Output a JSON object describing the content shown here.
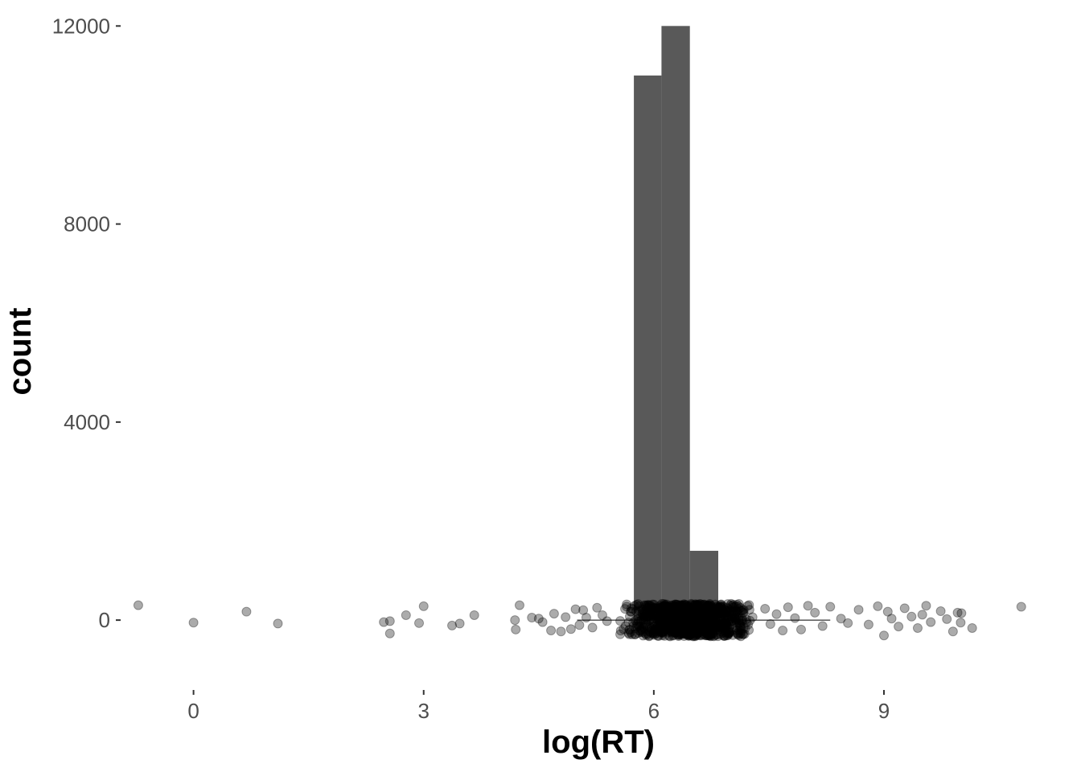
{
  "chart_data": {
    "type": "bar",
    "title": "",
    "xlabel": "log(RT)",
    "ylabel": "count",
    "xlim": [
      -0.95,
      10.95
    ],
    "ylim": [
      -1200,
      12200
    ],
    "x_ticks": [
      0,
      3,
      6,
      9
    ],
    "y_ticks": [
      0,
      4000,
      8000,
      12000
    ],
    "x_tick_labels": [
      "0",
      "3",
      "6",
      "9"
    ],
    "y_tick_labels": [
      "0",
      "4000",
      "8000",
      "12000"
    ],
    "grid": false,
    "legend": "none",
    "bar_color": "#595959",
    "bins": [
      {
        "x0": 5.74,
        "x1": 6.1,
        "count": 11000
      },
      {
        "x0": 6.1,
        "x1": 6.47,
        "count": 12000
      },
      {
        "x0": 6.47,
        "x1": 6.84,
        "count": 1400
      }
    ],
    "boxplot": {
      "min": 5.0,
      "q1": 5.95,
      "median": 6.15,
      "q3": 6.35,
      "max": 8.3
    },
    "jitter_points": {
      "color": "#000000",
      "opacity": 0.33,
      "x": [
        -0.72,
        0.0,
        0.69,
        1.1,
        2.48,
        2.56,
        2.56,
        2.77,
        2.94,
        3.0,
        3.37,
        3.47,
        3.66,
        4.19,
        4.2,
        4.25,
        4.41,
        4.5,
        4.55,
        4.66,
        4.7,
        4.79,
        4.85,
        4.92,
        4.98,
        5.03,
        5.08,
        5.12,
        5.2,
        5.26,
        5.33,
        5.39,
        7.45,
        7.52,
        7.6,
        7.68,
        7.75,
        7.84,
        7.92,
        8.01,
        8.1,
        8.2,
        8.3,
        8.44,
        8.53,
        8.67,
        8.8,
        8.92,
        9.0,
        9.05,
        9.1,
        9.19,
        9.27,
        9.36,
        9.44,
        9.5,
        9.55,
        9.61,
        9.74,
        9.82,
        9.9,
        9.96,
        10.0,
        10.01,
        10.15,
        10.79
      ],
      "y": [
        300,
        -50,
        170,
        -70,
        -40,
        -20,
        -270,
        100,
        -60,
        280,
        -110,
        -70,
        100,
        0,
        -190,
        300,
        50,
        30,
        -40,
        -210,
        130,
        -230,
        60,
        -180,
        220,
        -100,
        200,
        50,
        -150,
        250,
        100,
        -20,
        230,
        -80,
        120,
        -210,
        260,
        40,
        -190,
        290,
        150,
        -120,
        270,
        30,
        -60,
        210,
        -90,
        280,
        -310,
        170,
        30,
        -130,
        240,
        70,
        -160,
        110,
        290,
        -40,
        180,
        20,
        -230,
        150,
        -50,
        140,
        -160,
        270
      ]
    }
  }
}
